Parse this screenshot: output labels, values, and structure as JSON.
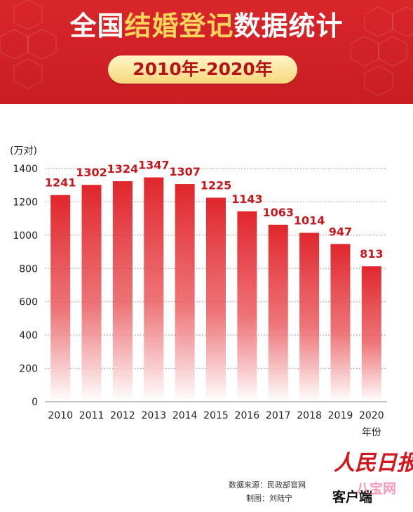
{
  "header": {
    "title_white_1": "全国",
    "title_yellow": "结婚登记",
    "title_white_2": "数据统计",
    "subtitle": "2010年-2020年"
  },
  "chart_data": {
    "type": "bar",
    "ylabel": "(万对)",
    "xlabel": "年份",
    "ylim": [
      0,
      1400
    ],
    "yticks": [
      0,
      200,
      400,
      600,
      800,
      1000,
      1200,
      1400
    ],
    "categories": [
      "2010",
      "2011",
      "2012",
      "2013",
      "2014",
      "2015",
      "2016",
      "2017",
      "2018",
      "2019",
      "2020"
    ],
    "values": [
      1241,
      1302,
      1324,
      1347,
      1307,
      1225,
      1143,
      1063,
      1014,
      947,
      813
    ],
    "grid": true,
    "colors": {
      "bar": "#e0262c",
      "label": "#c8161d",
      "grid": "#555555",
      "tick": "#222222"
    }
  },
  "footer": {
    "source": "数据来源：民政部官网",
    "credit": "制图：刘陆宁",
    "logo": "人民日报",
    "logo_sub": "客户端",
    "watermark": "八宝网"
  }
}
